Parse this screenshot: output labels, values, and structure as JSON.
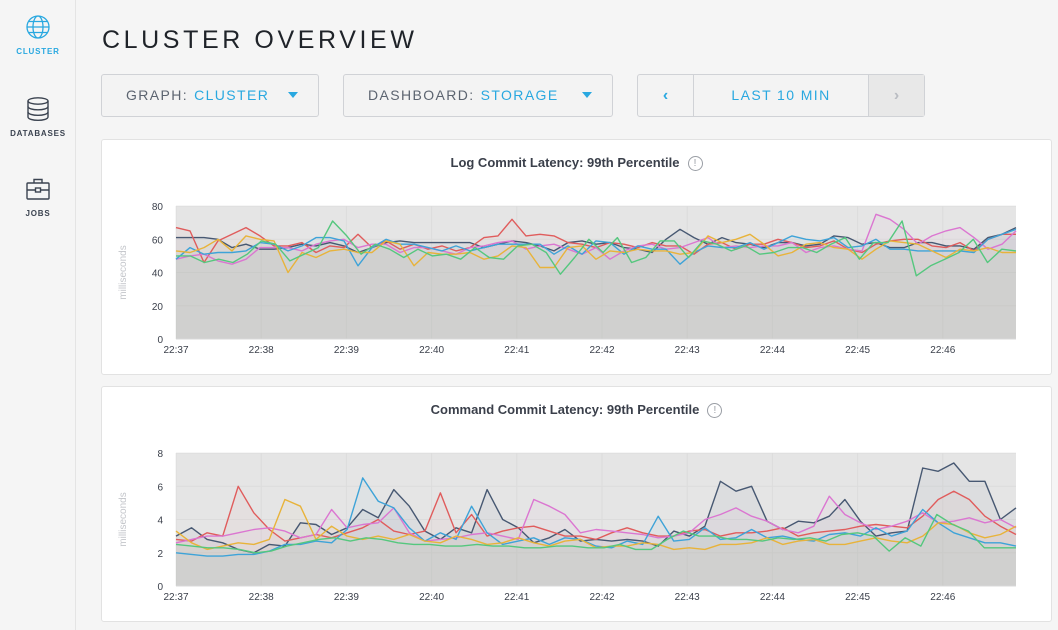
{
  "sidebar": {
    "items": [
      {
        "icon": "globe-icon",
        "label": "CLUSTER",
        "active": true
      },
      {
        "icon": "database-icon",
        "label": "DATABASES",
        "active": false
      },
      {
        "icon": "briefcase-icon",
        "label": "JOBS",
        "active": false
      }
    ]
  },
  "page_title": "CLUSTER OVERVIEW",
  "toolbar": {
    "graph_label": "GRAPH:",
    "graph_value": "CLUSTER",
    "dashboard_label": "DASHBOARD:",
    "dashboard_value": "STORAGE",
    "range_prev": "‹",
    "range_label": "LAST 10 MIN",
    "range_next": "›"
  },
  "colors": {
    "accent": "#29a8e0",
    "series": [
      "#475872",
      "#e05c5c",
      "#db76d1",
      "#3ea3d8",
      "#e8b33a",
      "#55c77e"
    ]
  },
  "chart_data": [
    {
      "type": "area",
      "title": "Log Commit Latency: 99th Percentile",
      "info_icon": "!",
      "ylabel": "milliseconds",
      "ylim": [
        0,
        80
      ],
      "yticks": [
        0,
        20,
        40,
        60,
        80
      ],
      "xticks": [
        "22:37",
        "22:38",
        "22:39",
        "22:40",
        "22:41",
        "22:42",
        "22:43",
        "22:44",
        "22:45",
        "22:46"
      ],
      "grid": true,
      "series": [
        {
          "color": "#475872",
          "values": [
            61,
            61,
            61,
            60,
            55,
            57,
            54,
            54,
            55,
            57,
            56,
            58,
            56,
            52,
            55,
            58,
            59,
            58,
            58,
            58,
            58,
            58,
            55,
            57,
            59,
            58,
            56,
            53,
            58,
            59,
            57,
            58,
            55,
            54,
            52,
            60,
            66,
            61,
            57,
            61,
            58,
            57,
            55,
            58,
            58,
            56,
            57,
            62,
            61,
            57,
            58,
            55,
            55,
            58,
            58,
            56,
            56,
            54,
            61,
            63,
            67
          ]
        },
        {
          "color": "#e05c5c",
          "values": [
            67,
            65,
            46,
            59,
            63,
            67,
            62,
            56,
            56,
            58,
            52,
            56,
            55,
            63,
            55,
            59,
            54,
            57,
            54,
            56,
            53,
            55,
            61,
            62,
            72,
            62,
            63,
            62,
            58,
            57,
            55,
            58,
            57,
            55,
            58,
            56,
            56,
            51,
            57,
            58,
            54,
            57,
            57,
            60,
            58,
            55,
            56,
            59,
            54,
            52,
            57,
            59,
            60,
            60,
            56,
            55,
            58,
            53,
            60,
            63,
            63
          ]
        },
        {
          "color": "#db76d1",
          "values": [
            48,
            50,
            51,
            47,
            45,
            48,
            55,
            55,
            55,
            53,
            57,
            59,
            60,
            55,
            57,
            57,
            52,
            55,
            55,
            53,
            51,
            55,
            56,
            58,
            59,
            54,
            56,
            57,
            54,
            51,
            55,
            48,
            53,
            56,
            57,
            54,
            55,
            58,
            61,
            55,
            56,
            55,
            56,
            56,
            58,
            52,
            55,
            56,
            54,
            53,
            75,
            72,
            66,
            57,
            62,
            65,
            67,
            61,
            54,
            57,
            65
          ]
        },
        {
          "color": "#3ea3d8",
          "values": [
            48,
            55,
            51,
            52,
            52,
            53,
            58,
            57,
            53,
            56,
            61,
            61,
            59,
            44,
            55,
            60,
            57,
            57,
            55,
            53,
            56,
            53,
            55,
            57,
            57,
            57,
            57,
            51,
            56,
            51,
            59,
            58,
            51,
            56,
            54,
            54,
            45,
            52,
            56,
            55,
            55,
            58,
            54,
            58,
            62,
            60,
            59,
            61,
            55,
            56,
            60,
            54,
            54,
            53,
            53,
            53,
            53,
            52,
            60,
            63,
            66
          ]
        },
        {
          "color": "#e8b33a",
          "values": [
            53,
            52,
            55,
            60,
            53,
            62,
            60,
            59,
            40,
            52,
            49,
            53,
            54,
            52,
            52,
            59,
            57,
            44,
            52,
            51,
            51,
            52,
            48,
            50,
            56,
            55,
            43,
            43,
            55,
            56,
            48,
            53,
            52,
            54,
            53,
            53,
            51,
            52,
            62,
            58,
            60,
            63,
            57,
            50,
            52,
            57,
            58,
            55,
            54,
            48,
            54,
            59,
            58,
            57,
            53,
            49,
            54,
            53,
            55,
            52,
            52
          ]
        },
        {
          "color": "#55c77e",
          "values": [
            50,
            50,
            46,
            48,
            46,
            51,
            59,
            57,
            47,
            51,
            55,
            71,
            62,
            51,
            57,
            54,
            49,
            54,
            50,
            51,
            48,
            55,
            49,
            48,
            56,
            57,
            52,
            39,
            49,
            60,
            52,
            61,
            46,
            49,
            59,
            59,
            49,
            59,
            57,
            53,
            56,
            51,
            52,
            55,
            55,
            52,
            57,
            61,
            48,
            58,
            58,
            71,
            38,
            44,
            48,
            52,
            60,
            46,
            54,
            53
          ]
        }
      ]
    },
    {
      "type": "area",
      "title": "Command Commit Latency: 99th Percentile",
      "info_icon": "!",
      "ylabel": "milliseconds",
      "ylim": [
        0,
        8
      ],
      "yticks": [
        0,
        2,
        4,
        6,
        8
      ],
      "xticks": [
        "22:37",
        "22:38",
        "22:39",
        "22:40",
        "22:41",
        "22:42",
        "22:43",
        "22:44",
        "22:45",
        "22:46"
      ],
      "grid": true,
      "series": [
        {
          "color": "#475872",
          "values": [
            3.0,
            3.5,
            2.8,
            2.6,
            2.2,
            2.0,
            2.5,
            2.4,
            3.8,
            3.7,
            3.1,
            3.5,
            4.6,
            4.1,
            5.8,
            4.8,
            3.3,
            2.8,
            3.5,
            3.2,
            5.8,
            4.0,
            3.5,
            2.6,
            2.9,
            3.4,
            2.7,
            2.8,
            2.7,
            2.8,
            2.7,
            2.4,
            3.3,
            3.0,
            3.6,
            6.3,
            5.7,
            6.0,
            3.9,
            3.4,
            3.9,
            3.8,
            4.2,
            5.2,
            3.9,
            3.0,
            3.2,
            3.3,
            7.1,
            6.9,
            7.4,
            6.3,
            6.3,
            4.0,
            4.7
          ]
        },
        {
          "color": "#e05c5c",
          "values": [
            2.8,
            2.7,
            3.2,
            3.0,
            6.0,
            4.4,
            3.4,
            2.7,
            2.9,
            3.1,
            2.9,
            3.2,
            3.5,
            4.0,
            3.3,
            3.1,
            3.3,
            5.6,
            3.2,
            4.3,
            3.0,
            3.3,
            3.5,
            3.6,
            3.3,
            3.0,
            3.0,
            2.8,
            3.2,
            3.5,
            3.2,
            3.0,
            3.0,
            3.3,
            3.4,
            3.0,
            3.2,
            3.2,
            3.3,
            3.5,
            3.0,
            3.2,
            3.3,
            3.4,
            3.6,
            3.7,
            3.6,
            3.5,
            4.2,
            5.2,
            5.7,
            5.2,
            4.2,
            3.6,
            3.1
          ]
        },
        {
          "color": "#db76d1",
          "values": [
            2.6,
            2.8,
            3.0,
            3.0,
            3.2,
            3.4,
            3.5,
            3.3,
            2.9,
            3.1,
            4.6,
            3.5,
            3.7,
            3.8,
            4.7,
            3.2,
            2.7,
            2.8,
            2.9,
            3.1,
            3.2,
            3.0,
            2.8,
            5.2,
            4.8,
            4.3,
            3.2,
            3.4,
            3.3,
            3.2,
            3.1,
            2.9,
            3.0,
            3.2,
            4.0,
            4.3,
            4.7,
            4.2,
            3.9,
            3.4,
            3.2,
            3.6,
            5.4,
            4.3,
            3.8,
            3.4,
            3.6,
            3.9,
            4.4,
            3.8,
            3.9,
            4.1,
            3.8,
            4.0,
            3.5
          ]
        },
        {
          "color": "#3ea3d8",
          "values": [
            2.0,
            1.9,
            1.8,
            1.8,
            1.9,
            1.9,
            2.1,
            2.5,
            2.5,
            2.7,
            2.6,
            3.4,
            6.5,
            5.1,
            4.7,
            3.5,
            2.7,
            3.2,
            2.8,
            4.8,
            3.2,
            2.5,
            2.7,
            2.9,
            2.5,
            2.9,
            2.8,
            2.4,
            2.3,
            2.7,
            2.5,
            4.2,
            2.7,
            2.8,
            3.5,
            2.8,
            2.9,
            3.4,
            2.9,
            3.0,
            2.8,
            2.7,
            3.1,
            3.2,
            3.0,
            3.5,
            3.0,
            3.3,
            4.6,
            3.8,
            3.2,
            2.9,
            2.6,
            2.6,
            2.4
          ]
        },
        {
          "color": "#e8b33a",
          "values": [
            3.3,
            2.6,
            2.2,
            2.4,
            2.6,
            2.5,
            2.8,
            5.2,
            4.8,
            2.8,
            3.6,
            3.0,
            2.8,
            3.0,
            2.8,
            3.1,
            2.7,
            2.6,
            3.0,
            2.8,
            2.5,
            2.6,
            2.9,
            2.6,
            2.4,
            2.7,
            2.8,
            2.3,
            2.4,
            2.4,
            2.6,
            2.5,
            2.2,
            2.3,
            2.2,
            2.5,
            2.5,
            2.6,
            2.9,
            2.5,
            2.7,
            2.8,
            2.5,
            2.5,
            2.7,
            2.9,
            2.7,
            2.6,
            3.0,
            3.8,
            3.7,
            3.2,
            2.9,
            3.1,
            3.6
          ]
        },
        {
          "color": "#55c77e",
          "values": [
            2.5,
            2.4,
            2.3,
            2.3,
            2.2,
            2.0,
            2.1,
            2.4,
            2.6,
            2.8,
            2.9,
            2.7,
            2.9,
            2.8,
            2.6,
            2.5,
            2.5,
            2.4,
            2.4,
            2.5,
            2.4,
            2.4,
            2.3,
            2.3,
            2.4,
            2.4,
            2.3,
            2.3,
            2.5,
            2.2,
            2.2,
            2.8,
            3.3,
            3.0,
            3.0,
            2.8,
            2.8,
            2.7,
            2.9,
            2.8,
            2.9,
            2.7,
            3.1,
            3.2,
            3.0,
            2.1,
            2.9,
            2.4,
            4.3,
            3.7,
            3.3,
            2.3,
            2.3,
            2.3
          ]
        }
      ]
    }
  ]
}
